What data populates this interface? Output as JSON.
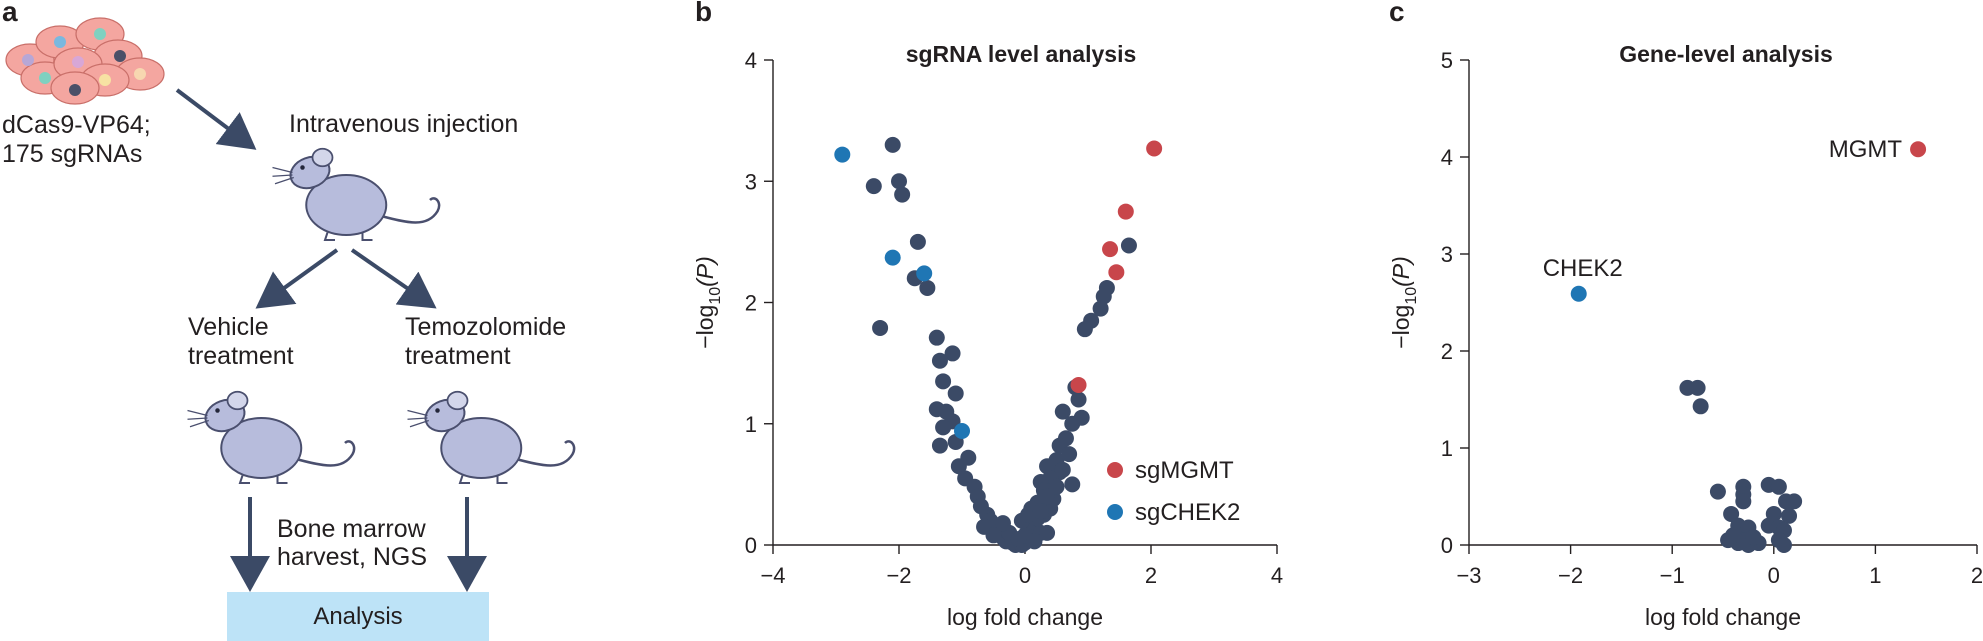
{
  "panel_a": {
    "letter": "a",
    "cell_label_line1": "dCas9-VP64;",
    "cell_label_line2": "175 sgRNAs",
    "injection_label": "Intravenous injection",
    "vehicle_line1": "Vehicle",
    "vehicle_line2": "treatment",
    "tmz_line1": "Temozolomide",
    "tmz_line2": "treatment",
    "harvest_line1": "Bone marrow",
    "harvest_line2": "harvest, NGS",
    "analysis_label": "Analysis",
    "colors": {
      "arrow": "#3b4a66",
      "mouse": "#b7bcdc",
      "mouse_outline": "#4a4f6e",
      "cell": "#f4a6a0",
      "box": "#bde3f7"
    }
  },
  "chart_data": [
    {
      "panel": "b",
      "type": "scatter",
      "title": "sgRNA level analysis",
      "xlabel": "log fold change",
      "ylabel_prefix": "−log",
      "ylabel_sub": "10",
      "ylabel_var": "(P)",
      "xlim": [
        -4,
        4
      ],
      "ylim": [
        0,
        4
      ],
      "xticks": [
        -4,
        -2,
        0,
        2,
        4
      ],
      "xtick_labels": [
        "−4",
        "−2",
        "0",
        "2",
        "4"
      ],
      "yticks": [
        0,
        1,
        2,
        3,
        4
      ],
      "ytick_labels": [
        "0",
        "1",
        "2",
        "3",
        "4"
      ],
      "colors": {
        "other": "#3b4a66",
        "sgMGMT": "#c8464b",
        "sgCHEK2": "#1f76b4"
      },
      "legend": [
        {
          "name": "sgMGMT",
          "color": "#c8464b"
        },
        {
          "name": "sgCHEK2",
          "color": "#1f76b4"
        }
      ],
      "series": [
        {
          "name": "sgMGMT",
          "points": [
            [
              2.05,
              3.27
            ],
            [
              1.6,
              2.75
            ],
            [
              1.35,
              2.44
            ],
            [
              1.45,
              2.25
            ],
            [
              0.85,
              1.32
            ]
          ]
        },
        {
          "name": "sgCHEK2",
          "points": [
            [
              -2.9,
              3.22
            ],
            [
              -2.1,
              2.37
            ],
            [
              -1.6,
              2.24
            ],
            [
              -1.0,
              0.94
            ]
          ]
        },
        {
          "name": "other",
          "points": [
            [
              -2.1,
              3.3
            ],
            [
              -2.4,
              2.96
            ],
            [
              -2.0,
              3.0
            ],
            [
              -1.95,
              2.89
            ],
            [
              -1.7,
              2.5
            ],
            [
              -1.75,
              2.2
            ],
            [
              -1.55,
              2.12
            ],
            [
              -2.3,
              1.79
            ],
            [
              -1.4,
              1.71
            ],
            [
              -1.15,
              1.58
            ],
            [
              -1.35,
              1.52
            ],
            [
              -1.3,
              1.35
            ],
            [
              -1.1,
              1.25
            ],
            [
              -1.4,
              1.12
            ],
            [
              -1.25,
              1.1
            ],
            [
              -1.15,
              1.02
            ],
            [
              -1.3,
              0.97
            ],
            [
              -1.35,
              0.82
            ],
            [
              -1.1,
              0.85
            ],
            [
              -0.9,
              0.72
            ],
            [
              -1.05,
              0.65
            ],
            [
              -0.95,
              0.55
            ],
            [
              -0.8,
              0.48
            ],
            [
              -0.75,
              0.4
            ],
            [
              -0.7,
              0.32
            ],
            [
              -0.6,
              0.25
            ],
            [
              -0.55,
              0.2
            ],
            [
              -0.65,
              0.15
            ],
            [
              -0.45,
              0.1
            ],
            [
              -0.35,
              0.06
            ],
            [
              -0.3,
              0.03
            ],
            [
              -0.2,
              0.02
            ],
            [
              -0.15,
              0.0
            ],
            [
              -0.05,
              0.0
            ],
            [
              -0.4,
              0.14
            ],
            [
              -0.25,
              0.1
            ],
            [
              -0.5,
              0.08
            ],
            [
              -0.1,
              0.05
            ],
            [
              0.0,
              0.02
            ],
            [
              -0.35,
              0.18
            ],
            [
              1.65,
              2.47
            ],
            [
              1.3,
              2.12
            ],
            [
              1.25,
              2.05
            ],
            [
              1.2,
              1.95
            ],
            [
              1.05,
              1.85
            ],
            [
              0.95,
              1.78
            ],
            [
              0.8,
              1.3
            ],
            [
              0.85,
              1.2
            ],
            [
              0.9,
              1.05
            ],
            [
              0.6,
              1.1
            ],
            [
              0.75,
              1.0
            ],
            [
              0.65,
              0.88
            ],
            [
              0.55,
              0.82
            ],
            [
              0.7,
              0.75
            ],
            [
              0.5,
              0.7
            ],
            [
              0.35,
              0.65
            ],
            [
              0.55,
              0.6
            ],
            [
              0.4,
              0.55
            ],
            [
              0.25,
              0.52
            ],
            [
              0.75,
              0.5
            ],
            [
              0.3,
              0.45
            ],
            [
              0.45,
              0.38
            ],
            [
              0.2,
              0.35
            ],
            [
              0.1,
              0.3
            ],
            [
              0.3,
              0.25
            ],
            [
              0.15,
              0.18
            ],
            [
              0.05,
              0.15
            ],
            [
              0.25,
              0.1
            ],
            [
              0.1,
              0.06
            ],
            [
              0.0,
              0.08
            ],
            [
              0.15,
              0.03
            ],
            [
              0.35,
              0.1
            ],
            [
              0.2,
              0.22
            ],
            [
              0.4,
              0.3
            ],
            [
              -0.05,
              0.2
            ],
            [
              0.05,
              0.25
            ],
            [
              0.35,
              0.4
            ],
            [
              0.5,
              0.48
            ],
            [
              0.25,
              0.28
            ],
            [
              0.6,
              0.62
            ]
          ]
        }
      ]
    },
    {
      "panel": "c",
      "type": "scatter",
      "title": "Gene-level analysis",
      "xlabel": "log fold change",
      "ylabel_prefix": "−log",
      "ylabel_sub": "10",
      "ylabel_var": "(P)",
      "xlim": [
        -3,
        2
      ],
      "ylim": [
        0,
        5
      ],
      "xticks": [
        -3,
        -2,
        -1,
        0,
        1,
        2
      ],
      "xtick_labels": [
        "−3",
        "−2",
        "−1",
        "0",
        "1",
        "2"
      ],
      "yticks": [
        0,
        1,
        2,
        3,
        4,
        5
      ],
      "ytick_labels": [
        "0",
        "1",
        "2",
        "3",
        "4",
        "5"
      ],
      "colors": {
        "other": "#3b4a66",
        "MGMT": "#c8464b",
        "CHEK2": "#1f76b4"
      },
      "series": [
        {
          "name": "MGMT",
          "label": "MGMT",
          "points": [
            [
              1.42,
              4.08
            ]
          ]
        },
        {
          "name": "CHEK2",
          "label": "CHEK2",
          "points": [
            [
              -1.92,
              2.59
            ]
          ]
        },
        {
          "name": "other",
          "points": [
            [
              -0.85,
              1.62
            ],
            [
              -0.75,
              1.62
            ],
            [
              -0.72,
              1.43
            ],
            [
              -0.55,
              0.55
            ],
            [
              -0.3,
              0.6
            ],
            [
              -0.3,
              0.52
            ],
            [
              -0.3,
              0.45
            ],
            [
              -0.05,
              0.62
            ],
            [
              0.05,
              0.6
            ],
            [
              0.12,
              0.45
            ],
            [
              0.2,
              0.45
            ],
            [
              0.0,
              0.32
            ],
            [
              0.15,
              0.3
            ],
            [
              -0.42,
              0.32
            ],
            [
              -0.35,
              0.2
            ],
            [
              -0.25,
              0.18
            ],
            [
              -0.05,
              0.2
            ],
            [
              0.05,
              0.18
            ],
            [
              0.1,
              0.15
            ],
            [
              -0.45,
              0.05
            ],
            [
              -0.35,
              0.02
            ],
            [
              -0.25,
              0.0
            ],
            [
              -0.15,
              0.02
            ],
            [
              -0.3,
              0.05
            ],
            [
              0.05,
              0.05
            ],
            [
              0.1,
              0.0
            ],
            [
              -0.2,
              0.08
            ],
            [
              -0.4,
              0.1
            ]
          ]
        }
      ]
    }
  ]
}
